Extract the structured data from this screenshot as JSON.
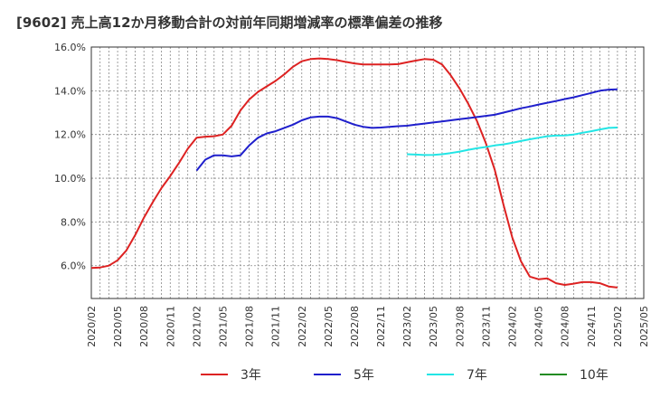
{
  "chart_data": {
    "type": "line",
    "title": "[9602]  売上高12か月移動合計の対前年同期増減率の標準偏差の推移",
    "xlabel": "",
    "ylabel": "",
    "ylim": [
      4.5,
      16.0
    ],
    "yticks": [
      6.0,
      8.0,
      10.0,
      12.0,
      14.0,
      16.0
    ],
    "ytick_labels": [
      "6.0%",
      "8.0%",
      "10.0%",
      "12.0%",
      "14.0%",
      "16.0%"
    ],
    "x_start": "2020/02",
    "xtick_labels": [
      "2020/02",
      "2020/05",
      "2020/08",
      "2020/11",
      "2021/02",
      "2021/05",
      "2021/08",
      "2021/11",
      "2022/02",
      "2022/05",
      "2022/08",
      "2022/11",
      "2023/02",
      "2023/05",
      "2023/08",
      "2023/11",
      "2024/02",
      "2024/05",
      "2024/08",
      "2024/11",
      "2025/02",
      "2025/05"
    ],
    "grid": true,
    "legend_position": "bottom",
    "series": [
      {
        "name": "3年",
        "color": "#dd2222",
        "x": [
          "2020/02",
          "2020/03",
          "2020/04",
          "2020/05",
          "2020/06",
          "2020/07",
          "2020/08",
          "2020/09",
          "2020/10",
          "2020/11",
          "2020/12",
          "2021/01",
          "2021/02",
          "2021/03",
          "2021/04",
          "2021/05",
          "2021/06",
          "2021/07",
          "2021/08",
          "2021/09",
          "2021/10",
          "2021/11",
          "2021/12",
          "2022/01",
          "2022/02",
          "2022/03",
          "2022/04",
          "2022/05",
          "2022/06",
          "2022/07",
          "2022/08",
          "2022/09",
          "2022/10",
          "2022/11",
          "2022/12",
          "2023/01",
          "2023/02",
          "2023/03",
          "2023/04",
          "2023/05",
          "2023/06",
          "2023/07",
          "2023/08",
          "2023/09",
          "2023/10",
          "2023/11",
          "2023/12",
          "2024/01",
          "2024/02",
          "2024/03",
          "2024/04",
          "2024/05",
          "2024/06",
          "2024/07",
          "2024/08",
          "2024/09",
          "2024/10",
          "2024/11",
          "2024/12",
          "2025/01",
          "2025/02"
        ],
        "values": [
          5.9,
          5.92,
          6.0,
          6.25,
          6.7,
          7.4,
          8.2,
          8.9,
          9.55,
          10.1,
          10.7,
          11.35,
          11.85,
          11.9,
          11.92,
          12.0,
          12.4,
          13.1,
          13.6,
          13.95,
          14.2,
          14.45,
          14.75,
          15.1,
          15.35,
          15.45,
          15.48,
          15.45,
          15.4,
          15.32,
          15.25,
          15.2,
          15.2,
          15.2,
          15.2,
          15.22,
          15.3,
          15.38,
          15.45,
          15.42,
          15.2,
          14.7,
          14.1,
          13.4,
          12.6,
          11.6,
          10.4,
          8.8,
          7.3,
          6.2,
          5.5,
          5.38,
          5.42,
          5.2,
          5.12,
          5.18,
          5.25,
          5.25,
          5.2,
          5.05,
          5.0
        ]
      },
      {
        "name": "5年",
        "color": "#1f1fcc",
        "x": [
          "2021/02",
          "2021/03",
          "2021/04",
          "2021/05",
          "2021/06",
          "2021/07",
          "2021/08",
          "2021/09",
          "2021/10",
          "2021/11",
          "2021/12",
          "2022/01",
          "2022/02",
          "2022/03",
          "2022/04",
          "2022/05",
          "2022/06",
          "2022/07",
          "2022/08",
          "2022/09",
          "2022/10",
          "2022/11",
          "2022/12",
          "2023/01",
          "2023/02",
          "2023/03",
          "2023/04",
          "2023/05",
          "2023/06",
          "2023/07",
          "2023/08",
          "2023/09",
          "2023/10",
          "2023/11",
          "2023/12",
          "2024/01",
          "2024/02",
          "2024/03",
          "2024/04",
          "2024/05",
          "2024/06",
          "2024/07",
          "2024/08",
          "2024/09",
          "2024/10",
          "2024/11",
          "2024/12",
          "2025/01",
          "2025/02"
        ],
        "values": [
          10.35,
          10.85,
          11.05,
          11.05,
          11.0,
          11.05,
          11.5,
          11.85,
          12.05,
          12.15,
          12.3,
          12.45,
          12.65,
          12.78,
          12.82,
          12.82,
          12.75,
          12.6,
          12.45,
          12.35,
          12.3,
          12.32,
          12.35,
          12.38,
          12.4,
          12.45,
          12.5,
          12.55,
          12.6,
          12.65,
          12.7,
          12.75,
          12.8,
          12.85,
          12.9,
          13.0,
          13.1,
          13.2,
          13.28,
          13.37,
          13.45,
          13.53,
          13.62,
          13.7,
          13.8,
          13.9,
          14.0,
          14.05,
          14.07
        ]
      },
      {
        "name": "7年",
        "color": "#22e5e5",
        "x": [
          "2023/02",
          "2023/03",
          "2023/04",
          "2023/05",
          "2023/06",
          "2023/07",
          "2023/08",
          "2023/09",
          "2023/10",
          "2023/11",
          "2023/12",
          "2024/01",
          "2024/02",
          "2024/03",
          "2024/04",
          "2024/05",
          "2024/06",
          "2024/07",
          "2024/08",
          "2024/09",
          "2024/10",
          "2024/11",
          "2024/12",
          "2025/01",
          "2025/02"
        ],
        "values": [
          11.1,
          11.08,
          11.06,
          11.07,
          11.1,
          11.15,
          11.22,
          11.3,
          11.37,
          11.43,
          11.5,
          11.55,
          11.62,
          11.7,
          11.78,
          11.85,
          11.92,
          11.95,
          11.96,
          12.0,
          12.08,
          12.15,
          12.23,
          12.3,
          12.32
        ]
      },
      {
        "name": "10年",
        "color": "#228b22",
        "x": [],
        "values": []
      }
    ]
  }
}
